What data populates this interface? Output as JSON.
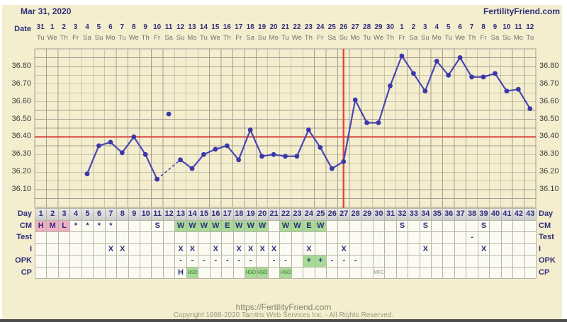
{
  "header": {
    "title": "Mar 31, 2020",
    "brand": "FertilityFriend.com"
  },
  "axis": {
    "date_label": "Date"
  },
  "chart_data": {
    "type": "line",
    "title": "Basal body temperature chart",
    "dates": [
      "31",
      "1",
      "2",
      "3",
      "4",
      "5",
      "6",
      "7",
      "8",
      "9",
      "10",
      "11",
      "12",
      "13",
      "14",
      "15",
      "16",
      "17",
      "18",
      "19",
      "20",
      "21",
      "22",
      "23",
      "24",
      "25",
      "26",
      "27",
      "28",
      "29",
      "30",
      "1",
      "2",
      "3",
      "4",
      "5",
      "6",
      "7",
      "8",
      "9",
      "10",
      "11",
      "12"
    ],
    "weekdays": [
      "Tu",
      "We",
      "Th",
      "Fr",
      "Sa",
      "Su",
      "Mo",
      "Tu",
      "We",
      "Th",
      "Fr",
      "Sa",
      "Su",
      "Mo",
      "Tu",
      "We",
      "Th",
      "Fr",
      "Sa",
      "Su",
      "Mo",
      "Tu",
      "We",
      "Th",
      "Fr",
      "Sa",
      "Su",
      "Mo",
      "Tu",
      "We",
      "Th",
      "Fr",
      "Sa",
      "Su",
      "Mo",
      "Tu",
      "We",
      "Th",
      "Fr",
      "Sa",
      "Su",
      "Mo",
      "Tu"
    ],
    "temps_c": [
      null,
      null,
      null,
      null,
      36.19,
      36.35,
      36.37,
      36.31,
      36.4,
      36.3,
      36.16,
      36.53,
      36.27,
      36.22,
      36.3,
      36.33,
      36.35,
      36.27,
      36.44,
      36.29,
      36.3,
      36.29,
      36.29,
      36.44,
      36.34,
      36.22,
      36.26,
      36.61,
      36.48,
      36.48,
      36.69,
      36.86,
      36.76,
      36.66,
      36.83,
      36.75,
      36.85,
      36.74,
      36.74,
      36.76,
      36.66,
      36.67,
      36.56
    ],
    "excluded_days": [
      12
    ],
    "dashed_segments": [
      [
        11,
        13
      ]
    ],
    "coverline_c": 36.4,
    "ovulation_day": 27,
    "ylim": [
      36.0,
      36.9
    ],
    "y_ticks": [
      "36.80",
      "36.70",
      "36.60",
      "36.50",
      "36.40",
      "36.30",
      "36.20",
      "36.10"
    ],
    "grid": true,
    "legend": null
  },
  "colors": {
    "page_bg": "#f4eecf",
    "temp_line": "#4a46b4",
    "temp_dot": "#3b38a8",
    "signal_red": "#dd4742",
    "highlight_green": "#a7da97",
    "menses_pink": "#efafc4",
    "navy_text": "#312f7a",
    "grid": "#a39f90"
  },
  "table": {
    "row_labels": [
      "Day",
      "CM",
      "Test",
      "I",
      "OPK",
      "CP"
    ],
    "day_numbers": [
      "1",
      "2",
      "3",
      "4",
      "5",
      "6",
      "7",
      "8",
      "9",
      "10",
      "11",
      "12",
      "13",
      "14",
      "15",
      "16",
      "17",
      "18",
      "19",
      "20",
      "21",
      "22",
      "23",
      "24",
      "25",
      "26",
      "27",
      "28",
      "29",
      "30",
      "31",
      "32",
      "33",
      "34",
      "35",
      "36",
      "37",
      "38",
      "39",
      "40",
      "41",
      "42",
      "43"
    ],
    "cm": [
      {
        "day": 1,
        "text": "H",
        "style": "pink"
      },
      {
        "day": 2,
        "text": "M",
        "style": "pink"
      },
      {
        "day": 3,
        "text": "L",
        "style": "pink"
      },
      {
        "day": 4,
        "text": "*"
      },
      {
        "day": 5,
        "text": "*"
      },
      {
        "day": 6,
        "text": "*"
      },
      {
        "day": 7,
        "text": "*"
      },
      {
        "day": 11,
        "text": "S"
      },
      {
        "day": 13,
        "text": "W",
        "style": "green"
      },
      {
        "day": 14,
        "text": "W",
        "style": "green"
      },
      {
        "day": 15,
        "text": "W",
        "style": "green"
      },
      {
        "day": 16,
        "text": "W",
        "style": "green"
      },
      {
        "day": 17,
        "text": "E",
        "style": "green"
      },
      {
        "day": 18,
        "text": "W",
        "style": "green"
      },
      {
        "day": 19,
        "text": "W",
        "style": "green"
      },
      {
        "day": 20,
        "text": "W",
        "style": "green"
      },
      {
        "day": 22,
        "text": "W",
        "style": "green"
      },
      {
        "day": 23,
        "text": "W",
        "style": "green"
      },
      {
        "day": 24,
        "text": "E",
        "style": "green"
      },
      {
        "day": 25,
        "text": "W",
        "style": "green"
      },
      {
        "day": 32,
        "text": "S"
      },
      {
        "day": 34,
        "text": "S"
      },
      {
        "day": 39,
        "text": "S"
      }
    ],
    "test": [
      {
        "day": 38,
        "text": "-"
      }
    ],
    "intercourse": [
      {
        "day": 7,
        "text": "X"
      },
      {
        "day": 8,
        "text": "X"
      },
      {
        "day": 13,
        "text": "X"
      },
      {
        "day": 14,
        "text": "X"
      },
      {
        "day": 16,
        "text": "X"
      },
      {
        "day": 18,
        "text": "X"
      },
      {
        "day": 19,
        "text": "X"
      },
      {
        "day": 20,
        "text": "X"
      },
      {
        "day": 21,
        "text": "X"
      },
      {
        "day": 24,
        "text": "X"
      },
      {
        "day": 27,
        "text": "X"
      },
      {
        "day": 34,
        "text": "X"
      },
      {
        "day": 39,
        "text": "X"
      }
    ],
    "opk": [
      {
        "day": 13,
        "text": "-"
      },
      {
        "day": 14,
        "text": "-"
      },
      {
        "day": 15,
        "text": "-"
      },
      {
        "day": 16,
        "text": "-"
      },
      {
        "day": 17,
        "text": "-"
      },
      {
        "day": 18,
        "text": "-"
      },
      {
        "day": 19,
        "text": "-"
      },
      {
        "day": 21,
        "text": "-"
      },
      {
        "day": 22,
        "text": "-"
      },
      {
        "day": 24,
        "text": "+",
        "style": "green"
      },
      {
        "day": 25,
        "text": "+",
        "style": "green"
      },
      {
        "day": 26,
        "text": "-"
      },
      {
        "day": 27,
        "text": "-"
      },
      {
        "day": 28,
        "text": "-"
      }
    ],
    "cp": [
      {
        "day": 13,
        "text": "H"
      },
      {
        "day": 14,
        "text": "HSO",
        "style": "tiny-green"
      },
      {
        "day": 19,
        "text": "HSO",
        "style": "tiny-green"
      },
      {
        "day": 20,
        "text": "HSO",
        "style": "tiny-green"
      },
      {
        "day": 22,
        "text": "HSO",
        "style": "tiny-green"
      },
      {
        "day": 30,
        "text": "MFC",
        "style": "tiny-gray"
      }
    ]
  },
  "footer": {
    "url": "https://FertilityFriend.com",
    "copyright": "Copyright 1998-2020 Tamtris Web Services Inc. - All Rights Reserved."
  }
}
